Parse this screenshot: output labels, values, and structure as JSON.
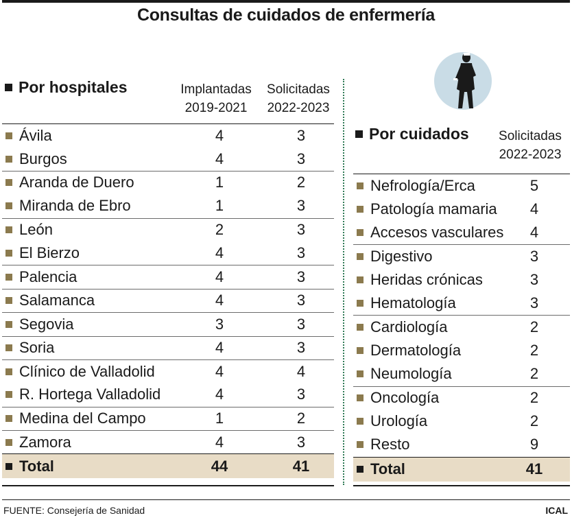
{
  "title": "Consultas de cuidados de enfermería",
  "left": {
    "heading": "Por hospitales",
    "col1": [
      "Implantadas",
      "2019-2021"
    ],
    "col2": [
      "Solicitadas",
      "2022-2023"
    ],
    "rows": [
      {
        "name": "Ávila",
        "implantadas": "4",
        "solicitadas": "3"
      },
      {
        "name": "Burgos",
        "implantadas": "4",
        "solicitadas": "3"
      },
      {
        "name": "Aranda de Duero",
        "implantadas": "1",
        "solicitadas": "2"
      },
      {
        "name": "Miranda de Ebro",
        "implantadas": "1",
        "solicitadas": "3"
      },
      {
        "name": "León",
        "implantadas": "2",
        "solicitadas": "3"
      },
      {
        "name": "El Bierzo",
        "implantadas": "4",
        "solicitadas": "3"
      },
      {
        "name": "Palencia",
        "implantadas": "4",
        "solicitadas": "3"
      },
      {
        "name": "Salamanca",
        "implantadas": "4",
        "solicitadas": "3"
      },
      {
        "name": "Segovia",
        "implantadas": "3",
        "solicitadas": "3"
      },
      {
        "name": "Soria",
        "implantadas": "4",
        "solicitadas": "3"
      },
      {
        "name": "Clínico de Valladolid",
        "implantadas": "4",
        "solicitadas": "4"
      },
      {
        "name": "R. Hortega Valladolid",
        "implantadas": "4",
        "solicitadas": "3"
      },
      {
        "name": "Medina del Campo",
        "implantadas": "1",
        "solicitadas": "2"
      },
      {
        "name": "Zamora",
        "implantadas": "4",
        "solicitadas": "3"
      }
    ],
    "total": {
      "name": "Total",
      "implantadas": "44",
      "solicitadas": "41"
    }
  },
  "right": {
    "heading": "Por cuidados",
    "col1": [
      "Solicitadas",
      "2022-2023"
    ],
    "rows": [
      {
        "name": "Nefrología/Erca",
        "solicitadas": "5"
      },
      {
        "name": "Patología mamaria",
        "solicitadas": "4"
      },
      {
        "name": "Accesos vasculares",
        "solicitadas": "4"
      },
      {
        "name": "Digestivo",
        "solicitadas": "3"
      },
      {
        "name": "Heridas crónicas",
        "solicitadas": "3"
      },
      {
        "name": "Hematología",
        "solicitadas": "3"
      },
      {
        "name": "Cardiología",
        "solicitadas": "2"
      },
      {
        "name": "Dermatología",
        "solicitadas": "2"
      },
      {
        "name": "Neumología",
        "solicitadas": "2"
      },
      {
        "name": "Oncología",
        "solicitadas": "2"
      },
      {
        "name": "Urología",
        "solicitadas": "2"
      },
      {
        "name": "Resto",
        "solicitadas": "9"
      }
    ],
    "total": {
      "name": "Total",
      "solicitadas": "41"
    }
  },
  "footer": {
    "source": "FUENTE: Consejería de Sanidad",
    "credit": "ICAL"
  },
  "colors": {
    "bullet": "#8b7a4e",
    "total_bg": "#e8dcc6",
    "divider": "#2f7a55",
    "figure_circle": "#c9dce6"
  },
  "icons": [
    "nurse-figure-icon"
  ]
}
